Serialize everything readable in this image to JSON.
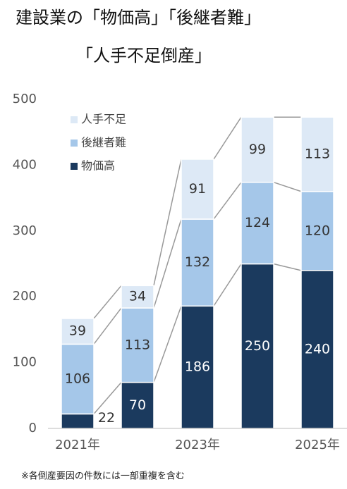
{
  "chart_data": {
    "type": "stacked_bar",
    "title": "建設業の「物価高」「後継者難」",
    "subtitle": "「人手不足倒産」",
    "note": "※各倒産要因の件数には一部重複を含む",
    "categories": [
      "2021年",
      null,
      "2023年",
      null,
      "2025年"
    ],
    "series": [
      {
        "name": "物価高",
        "color": "#1b3a5e",
        "values": [
          22,
          70,
          186,
          250,
          240
        ]
      },
      {
        "name": "後継者難",
        "color": "#a5c7e9",
        "values": [
          106,
          113,
          132,
          124,
          120
        ]
      },
      {
        "name": "人手不足",
        "color": "#dde9f6",
        "values": [
          39,
          34,
          91,
          99,
          113
        ]
      }
    ],
    "ylim": [
      0,
      500
    ],
    "yticks": [
      0,
      100,
      200,
      300,
      400,
      500
    ],
    "grid": false
  }
}
